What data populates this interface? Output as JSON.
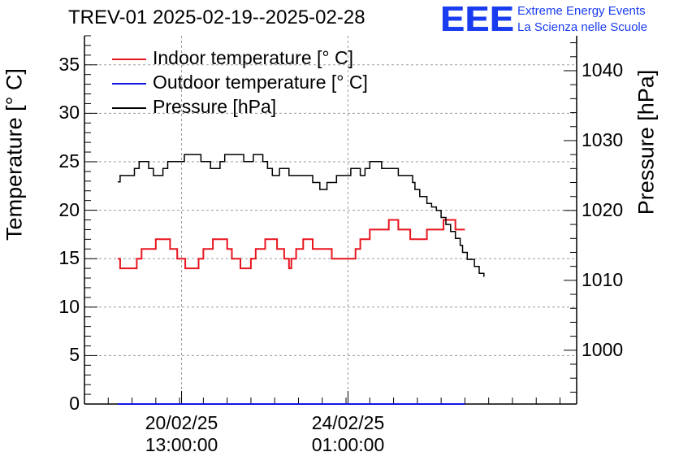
{
  "header": {
    "title": "TREV-01 2025-02-19--2025-02-28"
  },
  "logo": {
    "letters": "EEE",
    "line1": "Extreme Energy Events",
    "line2": "La Scienza nelle Scuole",
    "color": "#1a3cf0"
  },
  "colors": {
    "indoor": "#e8141e",
    "outdoor": "#1414e6",
    "pressure": "#000000",
    "grid": "#9a9a9a"
  },
  "chart_data": {
    "type": "line",
    "title": "TREV-01 2025-02-19--2025-02-28",
    "x_unit": "days since 2025-02-19 00:00",
    "xlim": [
      -0.5,
      9.85
    ],
    "x_ticks": [
      {
        "x": 1.5417,
        "date": "20/02/25",
        "time": "13:00:00"
      },
      {
        "x": 5.0417,
        "date": "24/02/25",
        "time": "01:00:00"
      }
    ],
    "y_left": {
      "label": "Temperature [° C]",
      "lim": [
        0,
        38
      ],
      "ticks": [
        0,
        5,
        10,
        15,
        20,
        25,
        30,
        35
      ]
    },
    "y_right": {
      "label": "Pressure [hPa]",
      "lim": [
        992.3,
        1045
      ],
      "ticks": [
        1000,
        1010,
        1020,
        1030,
        1040
      ]
    },
    "legend": [
      {
        "name": "Indoor temperature [° C]",
        "series": "indoor"
      },
      {
        "name": "Outdoor temperature [° C]",
        "series": "outdoor"
      },
      {
        "name": "Pressure [hPa]",
        "series": "pressure"
      }
    ],
    "series": [
      {
        "name": "Indoor temperature [° C]",
        "axis": "left",
        "color": "#e8141e",
        "step": true,
        "points": [
          [
            0.2,
            15
          ],
          [
            0.25,
            14
          ],
          [
            0.55,
            14
          ],
          [
            0.6,
            15
          ],
          [
            0.7,
            16
          ],
          [
            0.95,
            16
          ],
          [
            1.0,
            17
          ],
          [
            1.25,
            17
          ],
          [
            1.3,
            16
          ],
          [
            1.45,
            15
          ],
          [
            1.6,
            15
          ],
          [
            1.62,
            14
          ],
          [
            1.85,
            14
          ],
          [
            1.9,
            15
          ],
          [
            2.0,
            16
          ],
          [
            2.2,
            17
          ],
          [
            2.45,
            17
          ],
          [
            2.5,
            16
          ],
          [
            2.6,
            15
          ],
          [
            2.75,
            15
          ],
          [
            2.78,
            14
          ],
          [
            2.95,
            14
          ],
          [
            3.0,
            15
          ],
          [
            3.1,
            16
          ],
          [
            3.3,
            17
          ],
          [
            3.5,
            17
          ],
          [
            3.55,
            16
          ],
          [
            3.7,
            15
          ],
          [
            3.8,
            14
          ],
          [
            3.85,
            15
          ],
          [
            3.95,
            16
          ],
          [
            4.1,
            17
          ],
          [
            4.25,
            17
          ],
          [
            4.3,
            16
          ],
          [
            4.65,
            16
          ],
          [
            4.7,
            15
          ],
          [
            5.15,
            15
          ],
          [
            5.2,
            16
          ],
          [
            5.3,
            17
          ],
          [
            5.45,
            17
          ],
          [
            5.5,
            18
          ],
          [
            5.85,
            18
          ],
          [
            5.9,
            19
          ],
          [
            6.05,
            19
          ],
          [
            6.1,
            18
          ],
          [
            6.3,
            18
          ],
          [
            6.35,
            17
          ],
          [
            6.65,
            17
          ],
          [
            6.7,
            18
          ],
          [
            7.0,
            18
          ],
          [
            7.05,
            19
          ],
          [
            7.25,
            19
          ],
          [
            7.3,
            18
          ],
          [
            7.5,
            18
          ]
        ]
      },
      {
        "name": "Outdoor temperature [° C]",
        "axis": "left",
        "color": "#1414e6",
        "step": false,
        "points": [
          [
            0.2,
            0
          ],
          [
            7.5,
            0
          ]
        ]
      },
      {
        "name": "Pressure [hPa]",
        "axis": "right",
        "color": "#000000",
        "step": true,
        "points": [
          [
            0.2,
            1024.1
          ],
          [
            0.25,
            1025
          ],
          [
            0.5,
            1025
          ],
          [
            0.55,
            1026
          ],
          [
            0.65,
            1027
          ],
          [
            0.8,
            1027
          ],
          [
            0.85,
            1026
          ],
          [
            0.95,
            1025
          ],
          [
            1.1,
            1025
          ],
          [
            1.15,
            1026
          ],
          [
            1.25,
            1027
          ],
          [
            1.55,
            1027
          ],
          [
            1.6,
            1028
          ],
          [
            1.9,
            1028
          ],
          [
            1.95,
            1027
          ],
          [
            2.1,
            1027
          ],
          [
            2.15,
            1026
          ],
          [
            2.3,
            1026
          ],
          [
            2.35,
            1027
          ],
          [
            2.45,
            1028
          ],
          [
            2.8,
            1028
          ],
          [
            2.85,
            1027
          ],
          [
            3.0,
            1027
          ],
          [
            3.05,
            1028
          ],
          [
            3.2,
            1028
          ],
          [
            3.25,
            1027
          ],
          [
            3.35,
            1026
          ],
          [
            3.45,
            1025
          ],
          [
            3.55,
            1025
          ],
          [
            3.6,
            1026
          ],
          [
            3.75,
            1026
          ],
          [
            3.8,
            1025
          ],
          [
            4.25,
            1025
          ],
          [
            4.3,
            1024
          ],
          [
            4.45,
            1023
          ],
          [
            4.55,
            1023
          ],
          [
            4.6,
            1024
          ],
          [
            4.75,
            1024
          ],
          [
            4.8,
            1025
          ],
          [
            5.05,
            1025
          ],
          [
            5.1,
            1026
          ],
          [
            5.25,
            1026
          ],
          [
            5.3,
            1025
          ],
          [
            5.4,
            1026
          ],
          [
            5.5,
            1027
          ],
          [
            5.7,
            1027
          ],
          [
            5.75,
            1026
          ],
          [
            6.05,
            1026
          ],
          [
            6.1,
            1025
          ],
          [
            6.3,
            1025
          ],
          [
            6.4,
            1024
          ],
          [
            6.45,
            1023
          ],
          [
            6.55,
            1022
          ],
          [
            6.7,
            1021
          ],
          [
            6.8,
            1020.5
          ],
          [
            6.9,
            1020
          ],
          [
            7.0,
            1019
          ],
          [
            7.1,
            1018
          ],
          [
            7.2,
            1017
          ],
          [
            7.3,
            1016
          ],
          [
            7.4,
            1015
          ],
          [
            7.45,
            1014
          ],
          [
            7.55,
            1013
          ],
          [
            7.65,
            1013
          ],
          [
            7.7,
            1012
          ],
          [
            7.8,
            1011
          ],
          [
            7.9,
            1010.5
          ]
        ]
      }
    ]
  }
}
